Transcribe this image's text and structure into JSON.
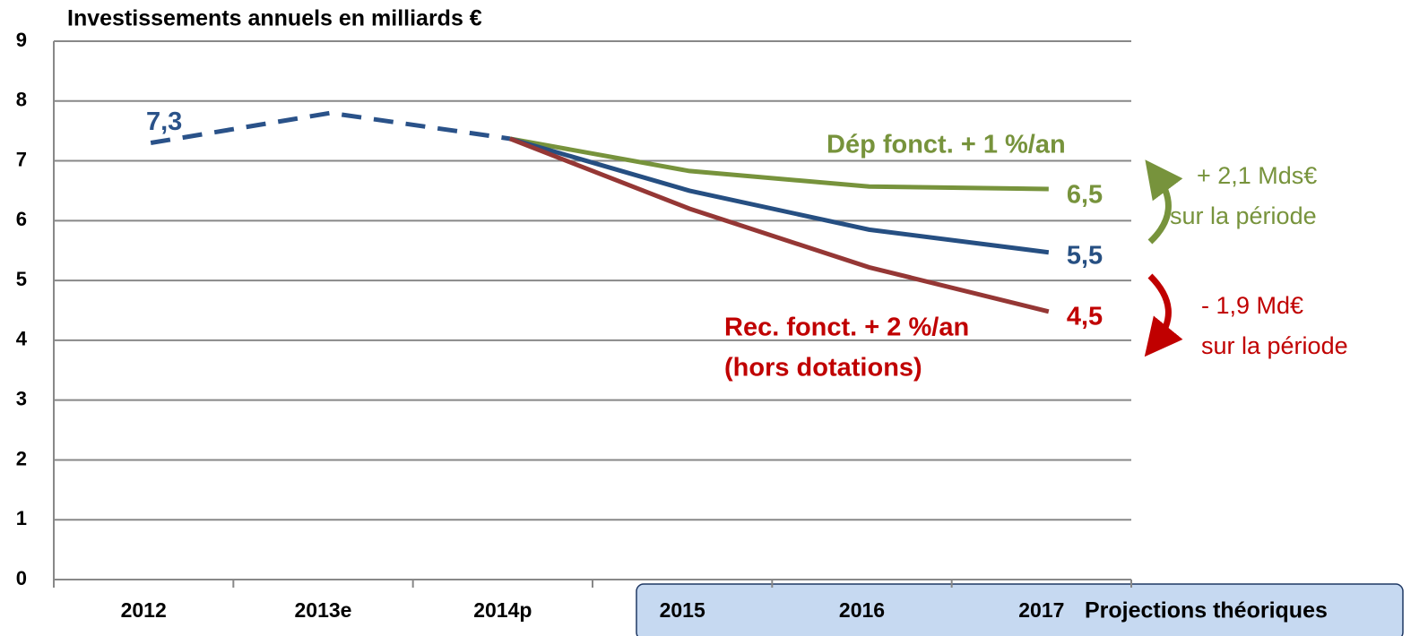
{
  "chart_data": {
    "type": "line",
    "title": "Investissements annuels en milliards €",
    "categories": [
      "2012",
      "2013e",
      "2014p",
      "2015",
      "2016",
      "2017"
    ],
    "series": [
      {
        "color": "#2a5289",
        "dashed": true,
        "values": [
          7.3,
          7.8,
          7.37,
          null,
          null,
          null
        ],
        "value_labels": [
          "7,3",
          null,
          null,
          null,
          null,
          null
        ]
      },
      {
        "color": "#77933c",
        "values": [
          null,
          null,
          7.37,
          6.83,
          6.57,
          6.53
        ],
        "value_labels": [
          null,
          null,
          null,
          null,
          null,
          "6,5"
        ]
      },
      {
        "color": "#264f82",
        "values": [
          null,
          null,
          7.37,
          6.5,
          5.85,
          5.47
        ],
        "value_labels": [
          null,
          null,
          null,
          null,
          null,
          "5,5"
        ]
      },
      {
        "color": "#953735",
        "values": [
          null,
          null,
          7.37,
          6.2,
          5.22,
          4.48
        ],
        "value_labels": [
          null,
          null,
          null,
          null,
          null,
          "4,5"
        ]
      }
    ],
    "ylim": [
      0,
      9
    ],
    "yticks": [
      0,
      1,
      2,
      3,
      4,
      5,
      6,
      7,
      8,
      9
    ],
    "grid": true,
    "annotations": {
      "green_series": "Dép fonct. + 1 %/an",
      "red_series": [
        "Rec. fonct. + 2 %/an",
        "(hors dotations)"
      ],
      "green_delta": [
        "+ 2,1 Mds€",
        "sur la période"
      ],
      "red_delta": [
        "- 1,9 Md€",
        "sur la période"
      ],
      "projection": "Projections théoriques"
    }
  }
}
